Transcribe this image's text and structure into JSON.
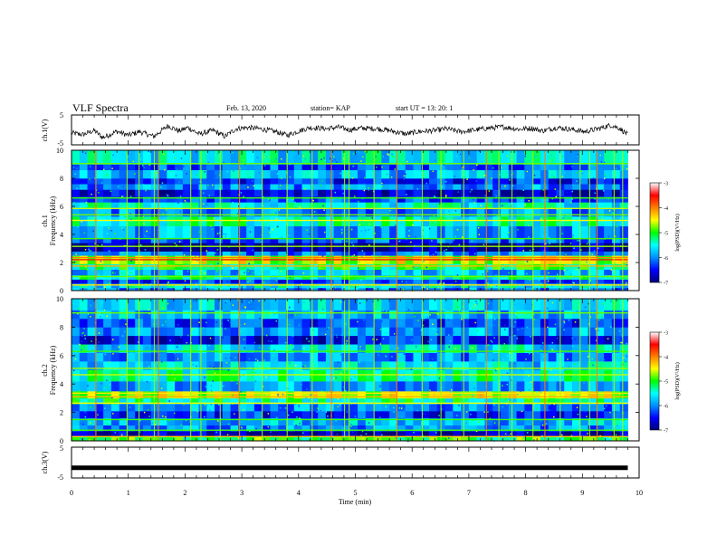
{
  "header": {
    "title": "VLF Spectra",
    "date": "Feb. 13, 2020",
    "station": "station= KAP",
    "start": "start  UT =   13: 20: 1"
  },
  "chart_data": [
    {
      "type": "line",
      "panel": "ch1-waveform",
      "ylabel": "ch.1(V)",
      "ylim": [
        -5,
        5
      ],
      "yticks": [
        "5",
        "-5"
      ],
      "x_range": [
        0,
        9.8
      ],
      "trend": [
        [
          0,
          -1.0
        ],
        [
          0.2,
          -1.6
        ],
        [
          0.4,
          -0.2
        ],
        [
          0.55,
          -2.6
        ],
        [
          0.8,
          -0.5
        ],
        [
          1.0,
          -1.8
        ],
        [
          1.2,
          -0.6
        ],
        [
          1.45,
          -2.2
        ],
        [
          1.7,
          1.4
        ],
        [
          1.9,
          -0.4
        ],
        [
          2.05,
          0.8
        ],
        [
          2.25,
          -1.4
        ],
        [
          2.5,
          -0.2
        ],
        [
          2.7,
          -2.2
        ],
        [
          2.9,
          0.4
        ],
        [
          3.1,
          0.8
        ],
        [
          3.35,
          0.3
        ],
        [
          3.6,
          -0.6
        ],
        [
          3.8,
          -1.8
        ],
        [
          4.0,
          -0.4
        ],
        [
          4.2,
          0.8
        ],
        [
          4.5,
          0.4
        ],
        [
          4.7,
          0.9
        ],
        [
          4.9,
          0.0
        ],
        [
          5.1,
          0.6
        ],
        [
          5.4,
          0.4
        ],
        [
          5.6,
          -0.2
        ],
        [
          5.9,
          -1.4
        ],
        [
          6.1,
          -0.6
        ],
        [
          6.4,
          -0.2
        ],
        [
          6.6,
          0.4
        ],
        [
          6.85,
          -0.6
        ],
        [
          7.0,
          -0.3
        ],
        [
          7.3,
          0.5
        ],
        [
          7.6,
          1.0
        ],
        [
          7.9,
          0.2
        ],
        [
          8.1,
          0.6
        ],
        [
          8.3,
          -0.3
        ],
        [
          8.55,
          0.8
        ],
        [
          8.8,
          0.2
        ],
        [
          9.05,
          -0.6
        ],
        [
          9.3,
          0.5
        ],
        [
          9.5,
          1.6
        ],
        [
          9.65,
          0.6
        ],
        [
          9.8,
          -1.6
        ]
      ]
    },
    {
      "type": "heatmap",
      "panel": "ch1-spectrogram",
      "ylabel_top": "ch.1",
      "ylabel": "Frequency  (kHz)",
      "ylim": [
        0,
        10
      ],
      "yticks": [
        "0",
        "2",
        "4",
        "6",
        "8",
        "10"
      ],
      "x_range": [
        0,
        9.8
      ],
      "background_log_psd": [
        {
          "f": [
            0.0,
            0.2
          ],
          "v": -6.0
        },
        {
          "f": [
            0.2,
            0.5
          ],
          "v": -5.6
        },
        {
          "f": [
            0.5,
            0.8
          ],
          "v": -6.3
        },
        {
          "f": [
            0.8,
            1.1
          ],
          "v": -5.4
        },
        {
          "f": [
            1.1,
            1.5
          ],
          "v": -5.8
        },
        {
          "f": [
            1.5,
            1.9
          ],
          "v": -5.2
        },
        {
          "f": [
            1.9,
            2.5
          ],
          "v": -4.6
        },
        {
          "f": [
            2.5,
            2.8
          ],
          "v": -6.1
        },
        {
          "f": [
            2.8,
            3.4
          ],
          "v": -6.9
        },
        {
          "f": [
            3.4,
            3.7
          ],
          "v": -6.2
        },
        {
          "f": [
            3.7,
            4.6
          ],
          "v": -5.9
        },
        {
          "f": [
            4.6,
            5.3
          ],
          "v": -5.4
        },
        {
          "f": [
            5.3,
            5.9
          ],
          "v": -6.0
        },
        {
          "f": [
            5.9,
            6.3
          ],
          "v": -5.5
        },
        {
          "f": [
            6.3,
            6.7
          ],
          "v": -6.2
        },
        {
          "f": [
            6.7,
            7.2
          ],
          "v": -6.6
        },
        {
          "f": [
            7.2,
            7.6
          ],
          "v": -6.0
        },
        {
          "f": [
            7.6,
            8.0
          ],
          "v": -6.4
        },
        {
          "f": [
            8.0,
            8.6
          ],
          "v": -5.8
        },
        {
          "f": [
            8.6,
            9.0
          ],
          "v": -6.2
        },
        {
          "f": [
            9.0,
            10.0
          ],
          "v": -5.6
        }
      ],
      "lines_khz": [
        {
          "f": 0.4,
          "v": -4.4
        },
        {
          "f": 1.0,
          "v": -4.8
        },
        {
          "f": 1.75,
          "v": -4.2
        },
        {
          "f": 2.2,
          "v": -3.6
        },
        {
          "f": 2.35,
          "v": -4.0
        },
        {
          "f": 3.15,
          "v": -4.7
        },
        {
          "f": 3.7,
          "v": -4.9
        },
        {
          "f": 5.0,
          "v": -4.5
        },
        {
          "f": 5.4,
          "v": -4.8
        },
        {
          "f": 5.85,
          "v": -4.6
        },
        {
          "f": 6.6,
          "v": -4.9
        },
        {
          "f": 9.05,
          "v": -4.8
        }
      ],
      "impulses_min": [
        0.42,
        0.97,
        1.18,
        1.45,
        1.52,
        2.09,
        2.27,
        2.61,
        2.95,
        3.35,
        3.79,
        4.23,
        4.57,
        4.8,
        4.88,
        5.32,
        5.72,
        6.17,
        6.5,
        6.9,
        7.3,
        7.52,
        7.75,
        8.12,
        8.33,
        8.6,
        8.95,
        9.12,
        9.25,
        9.55,
        9.7
      ]
    },
    {
      "type": "heatmap",
      "panel": "ch2-spectrogram",
      "ylabel_top": "ch.2",
      "ylabel": "Frequency  (kHz)",
      "ylim": [
        0,
        10
      ],
      "yticks": [
        "0",
        "2",
        "4",
        "6",
        "8",
        "10"
      ],
      "x_range": [
        0,
        9.8
      ],
      "background_log_psd": [
        {
          "f": [
            0.0,
            0.3
          ],
          "v": -5.0
        },
        {
          "f": [
            0.3,
            0.7
          ],
          "v": -6.8
        },
        {
          "f": [
            0.7,
            1.1
          ],
          "v": -6.0
        },
        {
          "f": [
            1.1,
            1.6
          ],
          "v": -5.8
        },
        {
          "f": [
            1.6,
            2.1
          ],
          "v": -6.4
        },
        {
          "f": [
            2.1,
            2.6
          ],
          "v": -6.0
        },
        {
          "f": [
            2.6,
            3.0
          ],
          "v": -5.3
        },
        {
          "f": [
            3.0,
            3.5
          ],
          "v": -4.6
        },
        {
          "f": [
            3.5,
            4.2
          ],
          "v": -5.9
        },
        {
          "f": [
            4.2,
            5.0
          ],
          "v": -5.4
        },
        {
          "f": [
            5.0,
            5.6
          ],
          "v": -5.7
        },
        {
          "f": [
            5.6,
            6.2
          ],
          "v": -6.0
        },
        {
          "f": [
            6.2,
            6.8
          ],
          "v": -5.6
        },
        {
          "f": [
            6.8,
            7.4
          ],
          "v": -6.5
        },
        {
          "f": [
            7.4,
            8.0
          ],
          "v": -5.9
        },
        {
          "f": [
            8.0,
            8.6
          ],
          "v": -6.3
        },
        {
          "f": [
            8.6,
            9.2
          ],
          "v": -5.8
        },
        {
          "f": [
            9.2,
            10.0
          ],
          "v": -5.7
        }
      ],
      "lines_khz": [
        {
          "f": 0.3,
          "v": -4.3
        },
        {
          "f": 0.75,
          "v": -4.9
        },
        {
          "f": 1.5,
          "v": -4.9
        },
        {
          "f": 2.65,
          "v": -4.5
        },
        {
          "f": 3.1,
          "v": -4.2
        },
        {
          "f": 3.35,
          "v": -4.4
        },
        {
          "f": 4.65,
          "v": -4.6
        },
        {
          "f": 5.1,
          "v": -4.7
        },
        {
          "f": 6.3,
          "v": -4.9
        },
        {
          "f": 9.0,
          "v": -4.8
        }
      ],
      "impulses_min": [
        0.42,
        0.97,
        1.18,
        1.45,
        1.52,
        2.09,
        2.27,
        2.61,
        2.95,
        3.35,
        3.79,
        4.23,
        4.57,
        4.8,
        4.88,
        5.32,
        5.72,
        6.17,
        6.5,
        6.9,
        7.3,
        7.52,
        7.75,
        8.12,
        8.33,
        8.6,
        8.95,
        9.12,
        9.25,
        9.55,
        9.7
      ]
    },
    {
      "type": "line",
      "panel": "ch3-waveform",
      "ylabel": "ch.3(V)",
      "xlabel": "Time  (min)",
      "ylim": [
        -5,
        5
      ],
      "yticks": [
        "5",
        "-5"
      ],
      "xticks": [
        "0",
        "1",
        "2",
        "3",
        "4",
        "5",
        "6",
        "7",
        "8",
        "9",
        "10"
      ],
      "xlim": [
        0,
        10
      ],
      "x_range": [
        0,
        9.8
      ],
      "values": [
        [
          0,
          -1.7
        ],
        [
          9.8,
          -1.7
        ]
      ]
    }
  ],
  "colorbar": {
    "label": "log(PSD)(V²/Hz)",
    "range": [
      -7,
      -3
    ],
    "ticks": [
      "-3",
      "-4",
      "-5",
      "-6",
      "-7"
    ],
    "colors": [
      "#00007a",
      "#0000ff",
      "#0090ff",
      "#00ffff",
      "#00ff00",
      "#ffff00",
      "#ff8000",
      "#ff0000",
      "#ffffff"
    ]
  }
}
